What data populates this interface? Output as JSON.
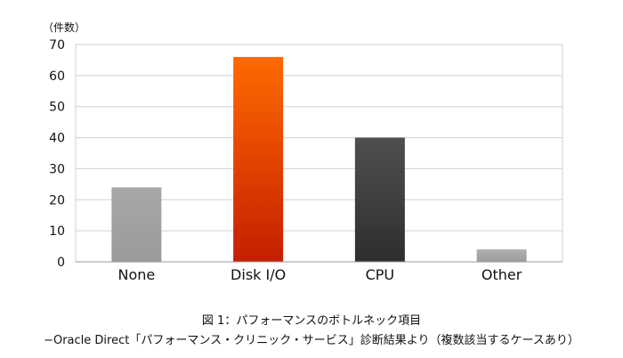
{
  "chart_data": {
    "type": "bar",
    "categories": [
      "None",
      "Disk I/O",
      "CPU",
      "Other"
    ],
    "values": [
      24,
      66,
      40,
      4
    ],
    "ylabel": "（件数）",
    "ylim": [
      0,
      70
    ],
    "yticks": [
      0,
      10,
      20,
      30,
      40,
      50,
      60,
      70
    ],
    "grid": true,
    "legend": "none",
    "bar_colors": [
      {
        "top": "#a8a8a8",
        "bottom": "#9a9a9a"
      },
      {
        "top": "#ff6a00",
        "bottom": "#c41f00"
      },
      {
        "top": "#4f4f4f",
        "bottom": "#2e2e2e"
      },
      {
        "top": "#b0b0b0",
        "bottom": "#9c9c9c"
      }
    ]
  },
  "caption": {
    "line1": "図 1：パフォーマンスのボトルネック項目",
    "line2": "−Oracle Direct「パフォーマンス・クリニック・サービス」診断結果より（複数該当するケースあり）"
  }
}
